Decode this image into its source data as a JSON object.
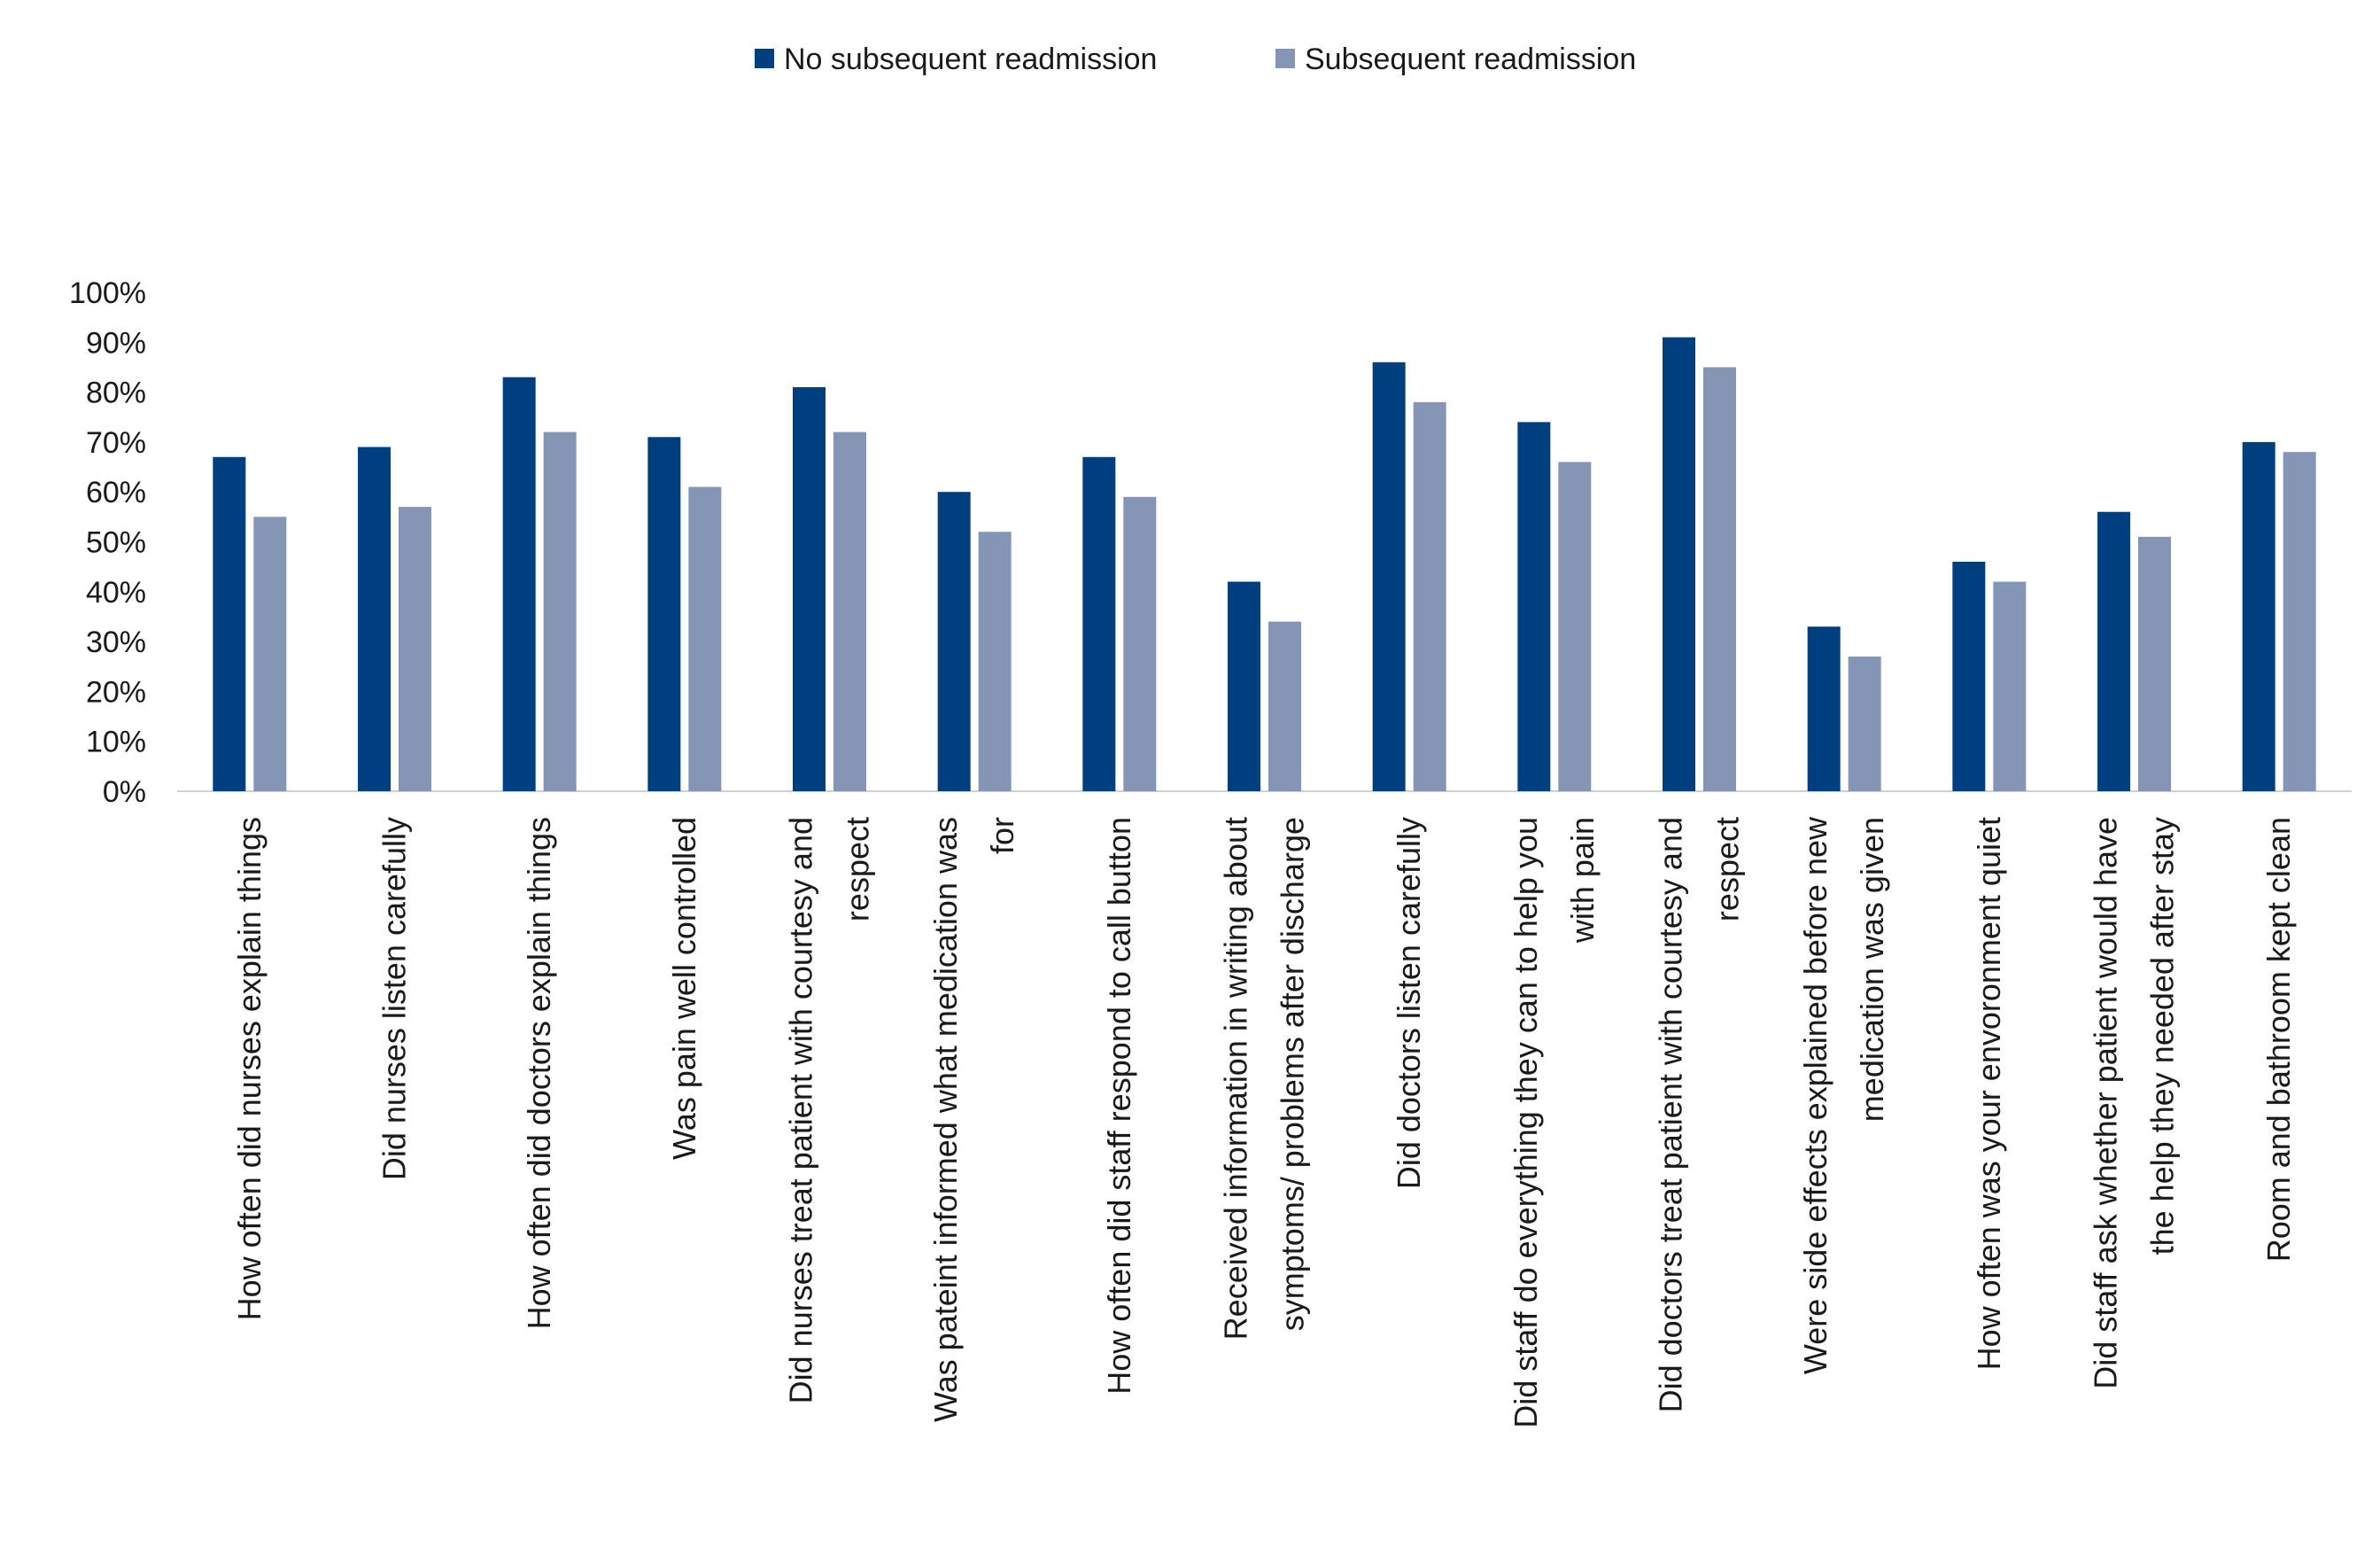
{
  "chart_data": {
    "type": "bar",
    "title": "",
    "xlabel": "",
    "ylabel": "",
    "ylim": [
      0,
      100
    ],
    "y_ticks": [
      "0%",
      "10%",
      "20%",
      "30%",
      "40%",
      "50%",
      "60%",
      "70%",
      "80%",
      "90%",
      "100%"
    ],
    "grid": false,
    "legend_position": "top-center",
    "categories": [
      [
        "How often did nurses explain things"
      ],
      [
        "Did nurses listen carefully"
      ],
      [
        "How often did doctors explain things"
      ],
      [
        "Was pain well controlled"
      ],
      [
        "Did nurses treat patient with courtesy and",
        "respect"
      ],
      [
        "Was pateint informed what medication was",
        "for"
      ],
      [
        "How often did staff respond to call button"
      ],
      [
        "Received information in writing about",
        "symptoms/ problems after discharge"
      ],
      [
        "Did doctors listen carefully"
      ],
      [
        "Did staff do everything they can to help you",
        "with pain"
      ],
      [
        "Did doctors treat patient with courtesy and",
        "respect"
      ],
      [
        "Were side effects explained before new",
        "medication was given"
      ],
      [
        "How often was your envoronment quiet"
      ],
      [
        "Did staff ask whether patient would have",
        "the help they needed after stay"
      ],
      [
        "Room and bathroom kept clean"
      ]
    ],
    "series": [
      {
        "name": "No subsequent readmission",
        "color": "#003F7F",
        "values": [
          67,
          69,
          83,
          71,
          81,
          60,
          67,
          42,
          86,
          74,
          91,
          33,
          46,
          56,
          70
        ]
      },
      {
        "name": "Subsequent readmission",
        "color": "#8595B5",
        "values": [
          55,
          57,
          72,
          61,
          72,
          52,
          59,
          34,
          78,
          66,
          85,
          27,
          42,
          51,
          68
        ]
      }
    ]
  }
}
